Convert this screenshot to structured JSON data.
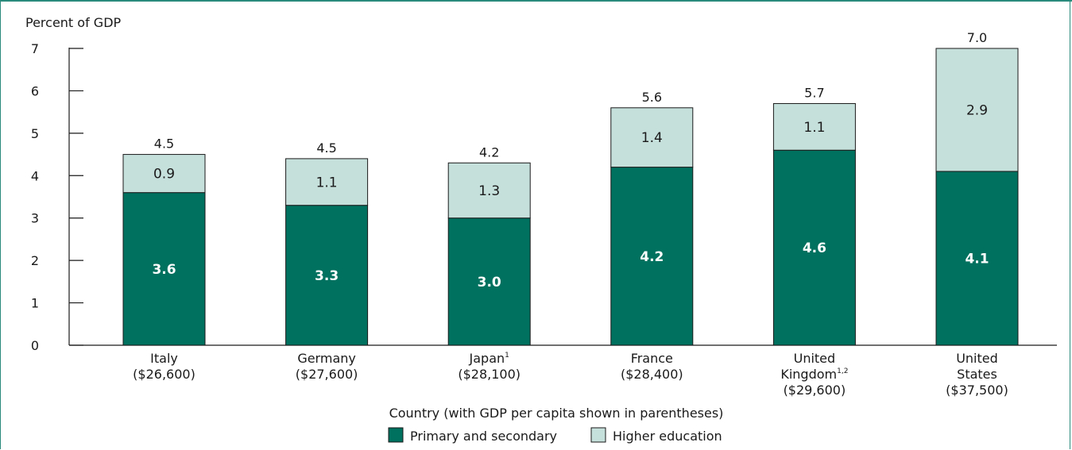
{
  "chart_data": {
    "type": "bar",
    "stacked": true,
    "ylabel": "Percent of GDP",
    "xlabel": "Country (with GDP per capita shown in parentheses)",
    "ylim": [
      0,
      7
    ],
    "yticks": [
      0,
      1,
      2,
      3,
      4,
      5,
      6,
      7
    ],
    "categories": [
      {
        "name": "Italy",
        "sup": "",
        "line2": "",
        "gdp": "($26,600)"
      },
      {
        "name": "Germany",
        "sup": "",
        "line2": "",
        "gdp": "($27,600)"
      },
      {
        "name": "Japan",
        "sup": "1",
        "line2": "",
        "gdp": "($28,100)"
      },
      {
        "name": "France",
        "sup": "",
        "line2": "",
        "gdp": "($28,400)"
      },
      {
        "name": "United",
        "sup": "1,2",
        "line2": "Kingdom",
        "gdp": "($29,600)"
      },
      {
        "name": "United",
        "sup": "",
        "line2": "States",
        "gdp": "($37,500)"
      }
    ],
    "series": [
      {
        "name": "Primary and secondary",
        "color": "#00705f",
        "values": [
          3.6,
          3.3,
          3.0,
          4.2,
          4.6,
          4.1
        ],
        "labels": [
          "3.6",
          "3.3",
          "3.0",
          "4.2",
          "4.6",
          "4.1"
        ]
      },
      {
        "name": "Higher education",
        "color": "#c5dfdb",
        "values": [
          0.9,
          1.1,
          1.3,
          1.4,
          1.1,
          2.9
        ],
        "labels": [
          "0.9",
          "1.1",
          "1.3",
          "1.4",
          "1.1",
          "2.9"
        ]
      }
    ],
    "totals": [
      "4.5",
      "4.5",
      "4.2",
      "5.6",
      "5.7",
      "7.0"
    ],
    "legend_position": "bottom-center",
    "grid": false
  }
}
